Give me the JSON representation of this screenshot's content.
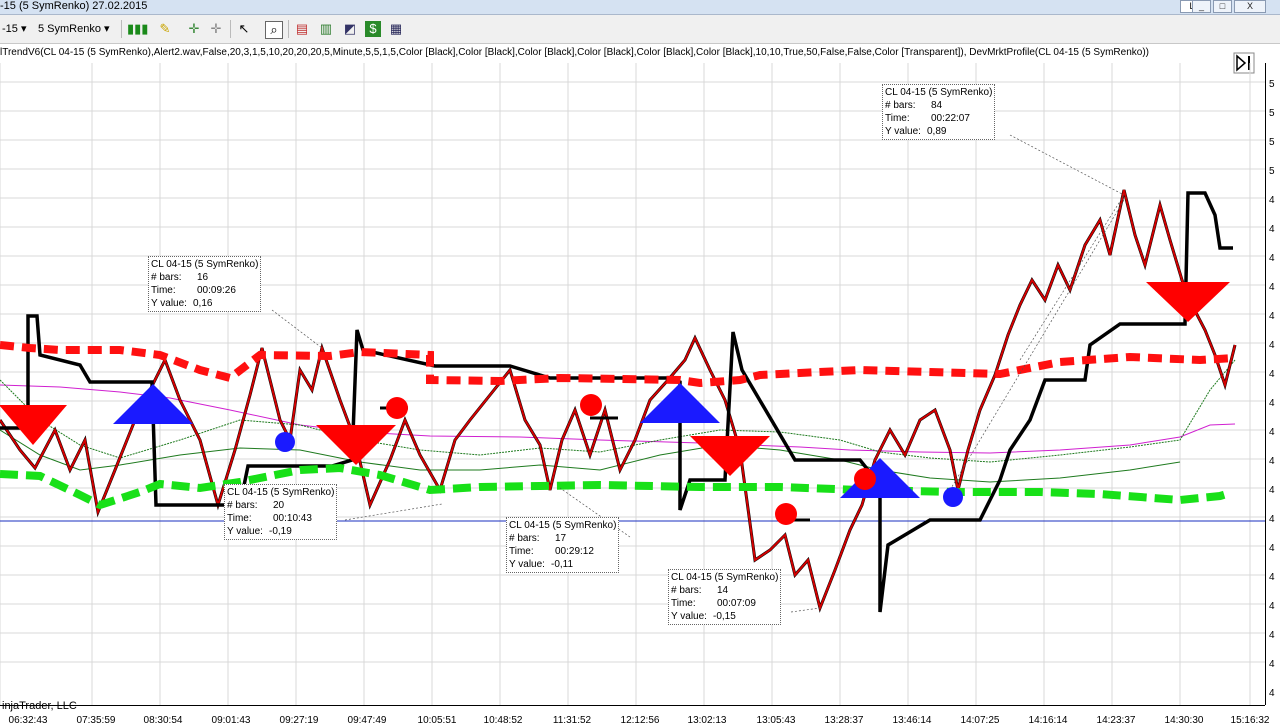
{
  "window": {
    "title": "-15 (5 SymRenko)  27.02.2015",
    "controls": {
      "minimize": "_",
      "maximize": "□",
      "close": "X",
      "restore_label": "L"
    }
  },
  "toolbar": {
    "instrument": "-15 ▾",
    "period": "5 SymRenko ▾",
    "icons": [
      "bar-style-icon",
      "pencil-icon",
      "crosshair-add-icon",
      "crosshair-icon",
      "pointer-icon",
      "zoom-icon",
      "data-box-icon",
      "chart-style-icon",
      "chart-trader-icon",
      "dollar-icon",
      "properties-icon"
    ]
  },
  "indicator_text": "lTrendV6(CL 04-15 (5 SymRenko),Alert2.wav,False,20,3,1,5,10,20,20,20,5,Minute,5,5,1,5,Color [Black],Color [Black],Color [Black],Color [Black],Color [Black],Color [Black],10,10,True,50,False,False,Color [Transparent]), DevMrktProfile(CL 04-15 (5 SymRenko))",
  "copyright": "injaTrader, LLC",
  "price_axis_labels": [
    "5",
    "5",
    "5",
    "5",
    "4",
    "4",
    "4",
    "4",
    "4",
    "4",
    "4",
    "4",
    "4",
    "4",
    "4",
    "4",
    "4",
    "4",
    "4",
    "4",
    "4",
    "4"
  ],
  "time_axis_labels": [
    "06:32:43",
    "07:35:59",
    "08:30:54",
    "09:01:43",
    "09:27:19",
    "09:47:49",
    "10:05:51",
    "10:48:52",
    "11:31:52",
    "12:12:56",
    "13:02:13",
    "13:05:43",
    "13:28:37",
    "13:46:14",
    "14:07:25",
    "14:16:14",
    "14:23:37",
    "14:30:30",
    "15:16:32"
  ],
  "tooltips": [
    {
      "title": "CL 04-15 (5 SymRenko)",
      "bars_label": "# bars:",
      "bars": "16",
      "time_label": "Time:",
      "time": "00:09:26",
      "y_label": "Y value:",
      "y": "0,16"
    },
    {
      "title": "CL 04-15 (5 SymRenko)",
      "bars_label": "# bars:",
      "bars": "20",
      "time_label": "Time:",
      "time": "00:10:43",
      "y_label": "Y value:",
      "y": "-0,19"
    },
    {
      "title": "CL 04-15 (5 SymRenko)",
      "bars_label": "# bars:",
      "bars": "17",
      "time_label": "Time:",
      "time": "00:29:12",
      "y_label": "Y value:",
      "y": "-0,11"
    },
    {
      "title": "CL 04-15 (5 SymRenko)",
      "bars_label": "# bars:",
      "bars": "14",
      "time_label": "Time:",
      "time": "00:07:09",
      "y_label": "Y value:",
      "y": "-0,15"
    },
    {
      "title": "CL 04-15 (5 SymRenko)",
      "bars_label": "# bars:",
      "bars": "84",
      "time_label": "Time:",
      "time": "00:22:07",
      "y_label": "Y value:",
      "y": "0,89"
    }
  ],
  "colors": {
    "grid": "#d8d8d8",
    "black_line": "#000000",
    "red_dash": "#ff1010",
    "green_dash": "#18e018",
    "blue_hline": "#1a2fbf",
    "magenta": "#d020d0",
    "green_thin": "#1e7a1e",
    "arrow_blue": "#1a1aff",
    "arrow_red": "#ff0000"
  }
}
